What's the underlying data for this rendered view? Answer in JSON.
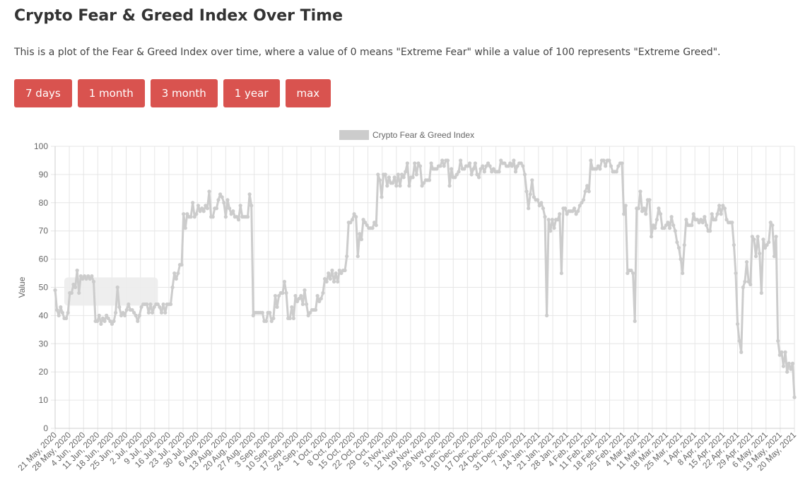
{
  "header": {
    "title": "Crypto Fear & Greed Index Over Time",
    "description": "This is a plot of the Fear & Greed Index over time, where a value of 0 means \"Extreme Fear\" while a value of 100 represents \"Extreme Greed\"."
  },
  "range_buttons": [
    "7 days",
    "1 month",
    "3 month",
    "1 year",
    "max"
  ],
  "colors": {
    "button_bg": "#d9534f",
    "line": "#cccccc",
    "grid": "#e6e6e6",
    "axis_text": "#666666"
  },
  "chart_data": {
    "type": "line",
    "ylabel": "Value",
    "ylim": [
      0,
      100
    ],
    "yticks": [
      0,
      10,
      20,
      30,
      40,
      50,
      60,
      70,
      80,
      90,
      100
    ],
    "grid": true,
    "legend_position": "top",
    "xtick_labels": [
      "21 May, 2020",
      "28 May, 2020",
      "4 Jun, 2020",
      "11 Jun, 2020",
      "18 Jun, 2020",
      "25 Jun, 2020",
      "2 Jul, 2020",
      "9 Jul, 2020",
      "16 Jul, 2020",
      "23 Jul, 2020",
      "30 Jul, 2020",
      "6 Aug, 2020",
      "13 Aug, 2020",
      "20 Aug, 2020",
      "27 Aug, 2020",
      "3 Sep, 2020",
      "10 Sep, 2020",
      "17 Sep, 2020",
      "24 Sep, 2020",
      "1 Oct, 2020",
      "8 Oct, 2020",
      "15 Oct, 2020",
      "22 Oct, 2020",
      "29 Oct, 2020",
      "5 Nov, 2020",
      "12 Nov, 2020",
      "19 Nov, 2020",
      "26 Nov, 2020",
      "3 Dec, 2020",
      "10 Dec, 2020",
      "17 Dec, 2020",
      "24 Dec, 2020",
      "31 Dec, 2020",
      "7 Jan, 2021",
      "14 Jan, 2021",
      "21 Jan, 2021",
      "28 Jan, 2021",
      "4 Feb, 2021",
      "11 Feb, 2021",
      "18 Feb, 2021",
      "25 Feb, 2021",
      "4 Mar, 2021",
      "11 Mar, 2021",
      "18 Mar, 2021",
      "25 Mar, 2021",
      "1 Apr, 2021",
      "8 Apr, 2021",
      "15 Apr, 2021",
      "22 Apr, 2021",
      "29 Apr, 2021",
      "6 May, 2021",
      "13 May, 2021",
      "20 May, 2021"
    ],
    "series": [
      {
        "name": "Crypto Fear & Greed Index",
        "color": "#cccccc",
        "values": [
          49,
          42,
          40,
          43,
          41,
          39,
          39,
          41,
          48,
          48,
          51,
          50,
          56,
          48,
          54,
          53,
          54,
          53,
          54,
          53,
          54,
          52,
          38,
          38,
          40,
          37,
          39,
          38,
          40,
          39,
          38,
          37,
          38,
          41,
          50,
          43,
          40,
          41,
          40,
          42,
          44,
          42,
          42,
          41,
          40,
          38,
          40,
          43,
          44,
          44,
          44,
          41,
          44,
          41,
          43,
          44,
          44,
          43,
          41,
          44,
          41,
          44,
          44,
          44,
          50,
          55,
          53,
          55,
          58,
          58,
          76,
          71,
          76,
          75,
          75,
          80,
          75,
          76,
          79,
          77,
          78,
          77,
          79,
          78,
          84,
          75,
          75,
          78,
          78,
          81,
          83,
          82,
          80,
          75,
          81,
          78,
          76,
          77,
          75,
          75,
          74,
          79,
          75,
          75,
          75,
          75,
          83,
          79,
          40,
          41,
          41,
          41,
          41,
          41,
          38,
          38,
          41,
          41,
          38,
          39,
          47,
          43,
          47,
          48,
          48,
          52,
          48,
          39,
          39,
          43,
          39,
          47,
          45,
          46,
          47,
          44,
          49,
          44,
          40,
          41,
          42,
          42,
          42,
          47,
          45,
          46,
          48,
          53,
          52,
          55,
          53,
          56,
          52,
          55,
          52,
          56,
          55,
          56,
          56,
          61,
          73,
          73,
          74,
          76,
          75,
          61,
          69,
          67,
          74,
          73,
          72,
          71,
          71,
          71,
          73,
          72,
          90,
          88,
          82,
          90,
          90,
          86,
          89,
          87,
          87,
          89,
          86,
          90,
          86,
          90,
          89,
          91,
          94,
          86,
          89,
          89,
          94,
          90,
          94,
          93,
          86,
          87,
          88,
          88,
          88,
          94,
          92,
          92,
          92,
          93,
          93,
          95,
          93,
          95,
          95,
          86,
          92,
          89,
          89,
          90,
          91,
          95,
          92,
          92,
          93,
          93,
          94,
          90,
          92,
          94,
          90,
          89,
          92,
          93,
          91,
          93,
          94,
          93,
          91,
          92,
          91,
          91,
          91,
          95,
          94,
          94,
          93,
          93,
          94,
          93,
          95,
          91,
          93,
          94,
          94,
          93,
          90,
          84,
          78,
          83,
          88,
          82,
          81,
          81,
          79,
          80,
          78,
          75,
          40,
          74,
          70,
          74,
          71,
          74,
          74,
          76,
          55,
          78,
          78,
          76,
          77,
          77,
          77,
          78,
          76,
          77,
          79,
          80,
          81,
          84,
          86,
          84,
          95,
          92,
          92,
          92,
          93,
          92,
          95,
          95,
          93,
          95,
          95,
          93,
          91,
          91,
          91,
          93,
          94,
          94,
          76,
          79,
          55,
          56,
          56,
          55,
          38,
          78,
          78,
          84,
          77,
          78,
          76,
          81,
          81,
          68,
          72,
          71,
          74,
          78,
          76,
          71,
          71,
          72,
          73,
          71,
          75,
          72,
          70,
          66,
          64,
          60,
          55,
          65,
          74,
          72,
          72,
          72,
          76,
          74,
          74,
          73,
          74,
          73,
          75,
          72,
          70,
          70,
          76,
          74,
          74,
          76,
          79,
          76,
          79,
          78,
          74,
          73,
          73,
          73,
          65,
          55,
          37,
          31,
          27,
          50,
          52,
          59,
          52,
          51,
          68,
          67,
          61,
          68,
          62,
          48,
          67,
          64,
          65,
          66,
          73,
          72,
          61,
          68,
          31,
          26,
          27,
          22,
          27,
          20,
          23,
          21,
          23,
          11
        ]
      }
    ],
    "annotation_box": {
      "x_range": [
        5,
        56
      ],
      "y_range": [
        43.5,
        53.5
      ],
      "color": "#ececec"
    }
  }
}
